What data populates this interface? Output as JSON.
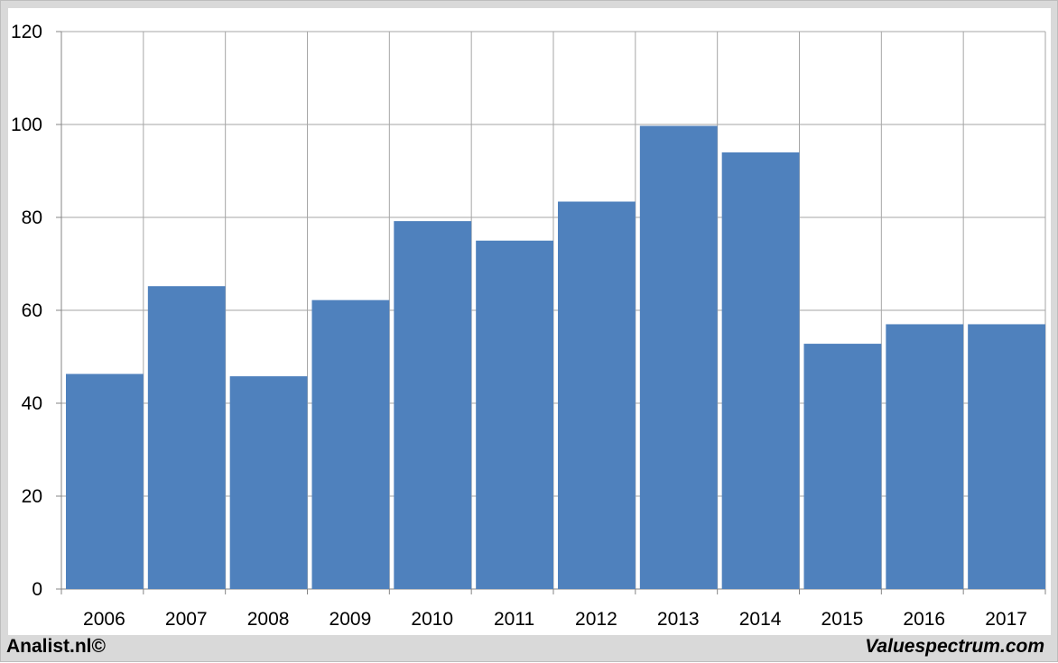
{
  "chart_data": {
    "type": "bar",
    "title": "",
    "xlabel": "",
    "ylabel": "",
    "categories": [
      "2006",
      "2007",
      "2008",
      "2009",
      "2010",
      "2011",
      "2012",
      "2013",
      "2014",
      "2015",
      "2016",
      "2017"
    ],
    "values": [
      46.3,
      65.2,
      45.8,
      62.2,
      79.2,
      75.0,
      83.4,
      99.7,
      94.0,
      52.8,
      57.0,
      57.0
    ],
    "ylim": [
      0,
      120
    ],
    "yticks": [
      0,
      20,
      40,
      60,
      80,
      100,
      120
    ],
    "grid": true,
    "bar_color": "#4f81bd",
    "grid_color": "#a6a6a6"
  },
  "footer": {
    "left_text": "Analist.nl©",
    "right_text": "Valuespectrum.com"
  }
}
